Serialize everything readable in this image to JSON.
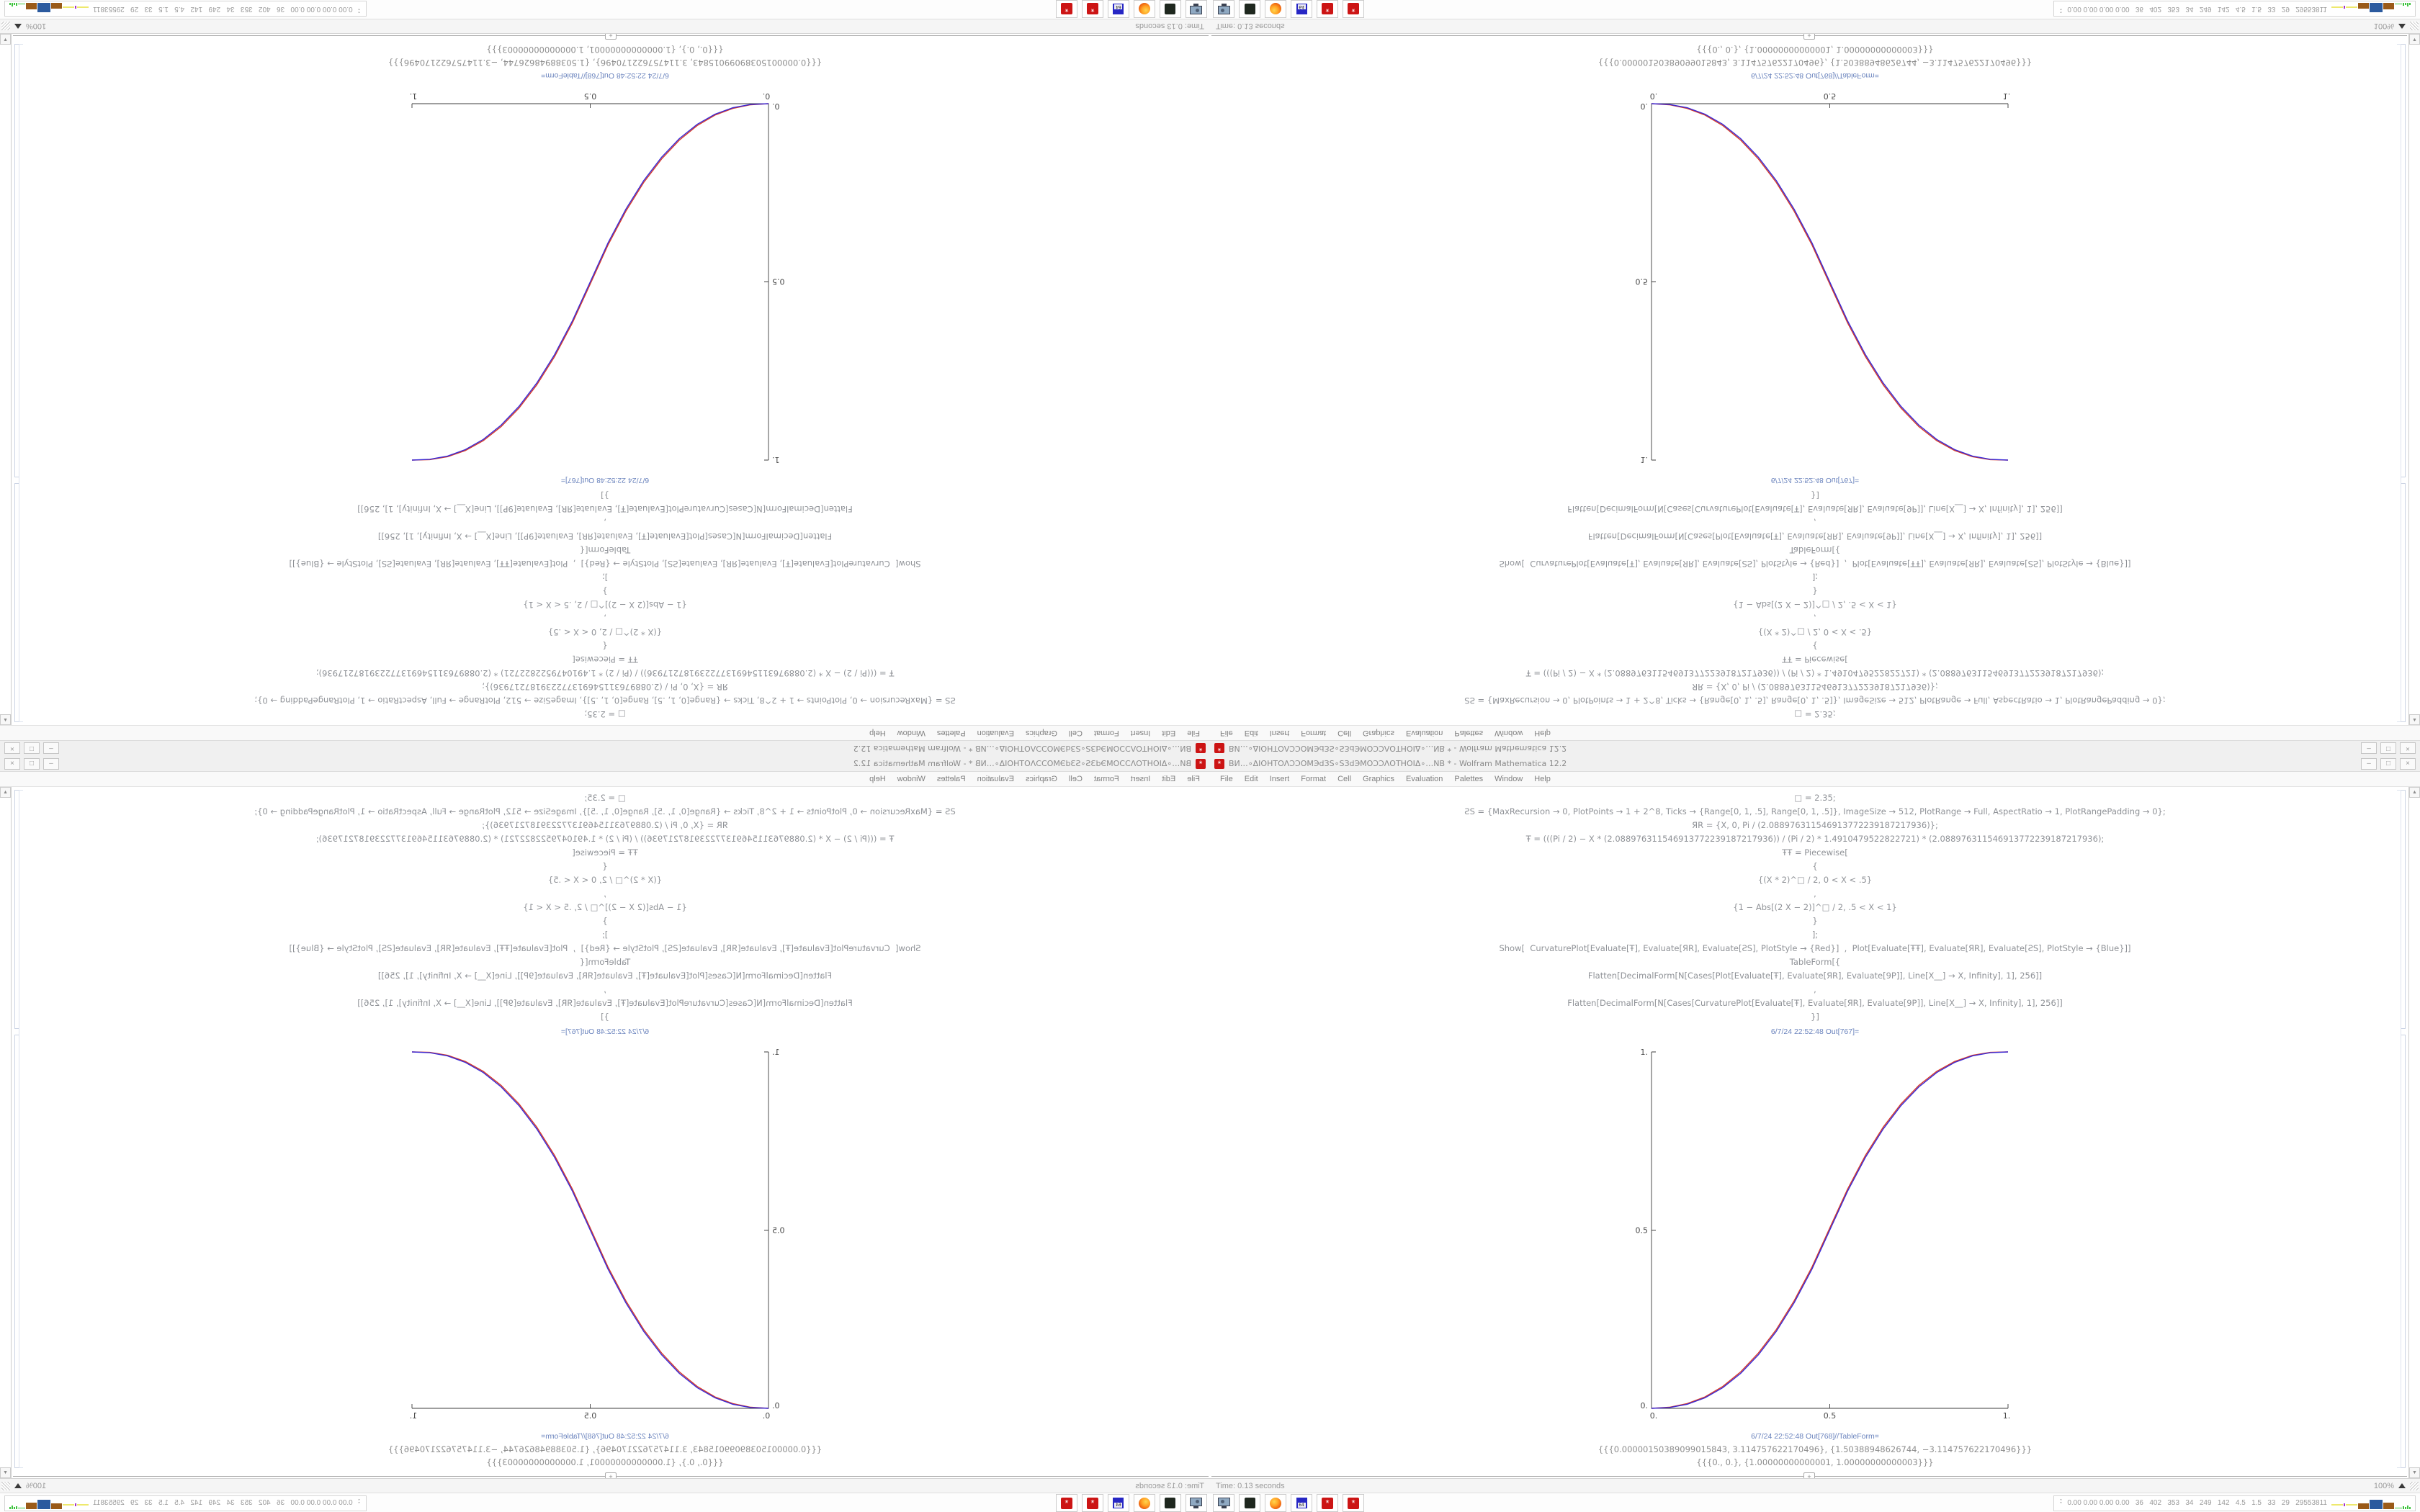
{
  "window": {
    "title": "ВИ…∘ΔIOHTOΛƆƆOMЭdЗS∘SЗdЭMOƆƆΛOTHOIΔ∘…NB * - Wolfram Mathematica 12.2",
    "menu": [
      "File",
      "Edit",
      "Insert",
      "Format",
      "Cell",
      "Graphics",
      "Evaluation",
      "Palettes",
      "Window",
      "Help"
    ],
    "minimize_glyph": "–",
    "maximize_glyph": "□",
    "close_glyph": "×",
    "status_left": "Time: 0.13 seconds",
    "zoom_level": "100%",
    "scroll_up_glyph": "▲",
    "scroll_down_glyph": "▼"
  },
  "notebook": {
    "input_lines": [
      "□ = 2.35;",
      "ƧS = {MaxRecursion → 0, PlotPoints → 1 + 2^8, Ticks → {Range[0, 1, .5], Range[0, 1, .5]}, ImageSize → 512, PlotRange → Full, AspectRatio → 1, PlotRangePadding → 0};",
      "ЯR = {X, 0, Pi / (2.088976311546913772239187217936)};",
      "Ŧ = (((Pi / 2) − X * (2.088976311546913772239187217936)) / (Pi / 2) * 1.4910479522822721) * (2.088976311546913772239187217936);",
      "ŦŦ = Piecewise[",
      "{",
      "{(X * 2)^□ / 2, 0 < X < .5}",
      ",",
      "{1 − Abs[(2 X − 2)]^□ / 2, .5 < X < 1}",
      "}",
      "];",
      "Show[  CurvaturePlot[Evaluate[Ŧ], Evaluate[ЯR], Evaluate[ƧS], PlotStyle → {Red}]  ,  Plot[Evaluate[ŦŦ], Evaluate[ЯR], Evaluate[ƧS], PlotStyle → {Blue}]]",
      "TableForm[{",
      "Flatten[DecimalForm[N[Cases[Plot[Evaluate[Ŧ], Evaluate[ЯR], Evaluate[9P]], Line[X__] → X, Infinity], 1], 256]]",
      ",",
      "Flatten[DecimalForm[N[Cases[CurvaturePlot[Evaluate[Ŧ], Evaluate[ЯR], Evaluate[9P]], Line[X__] → X, Infinity], 1], 256]]",
      "}]"
    ],
    "out_label_plot": "6/7/24 22:52:48 Out[767]=",
    "out_label_table": "6/7/24 22:52:48 Out[768]//TableForm=",
    "table_rows": [
      "{{{0.00000150389099015843, 3.114757622170496}, {1.50388948626744, −3.114757622170496}}}",
      "{{{0., 0.}, {1.00000000000001, 1.00000000000003}}}"
    ],
    "insert_plus": "+"
  },
  "chart_data": {
    "type": "line",
    "title": "",
    "xlabel": "",
    "ylabel": "",
    "xlim": [
      0,
      1
    ],
    "ylim": [
      0,
      1
    ],
    "grid": false,
    "axes": "left-bottom",
    "x_tick_labels": [
      "0.",
      "0.5",
      "1."
    ],
    "y_tick_labels": [
      "0.",
      "0.5",
      "1."
    ],
    "x": [
      0,
      0.05,
      0.1,
      0.15,
      0.2,
      0.25,
      0.3,
      0.35,
      0.4,
      0.45,
      0.5,
      0.55,
      0.6,
      0.65,
      0.7,
      0.75,
      0.8,
      0.85,
      0.9,
      0.95,
      1
    ],
    "series": [
      {
        "name": "CurvaturePlot (Red)",
        "color": "#d63a2a",
        "values": [
          0,
          0.0031,
          0.0133,
          0.0322,
          0.0615,
          0.1022,
          0.1554,
          0.2213,
          0.3017,
          0.3964,
          0.506,
          0.6154,
          0.7097,
          0.7893,
          0.8544,
          0.9062,
          0.9455,
          0.9732,
          0.9905,
          0.9987,
          1
        ]
      },
      {
        "name": "Plot (Blue)",
        "color": "#3a2ad6",
        "values": [
          0,
          0.0022,
          0.0114,
          0.0295,
          0.058,
          0.098,
          0.1505,
          0.216,
          0.296,
          0.3905,
          0.5,
          0.6095,
          0.704,
          0.784,
          0.8495,
          0.902,
          0.942,
          0.9705,
          0.9886,
          0.9978,
          1
        ]
      }
    ]
  },
  "taskbar": {
    "icons": [
      "system-monitor",
      "disk-utility",
      "firefox",
      "floppy-64",
      "mathematica",
      "mathematica"
    ],
    "floppy_label": "64",
    "chevron": "⌃",
    "stats_text": "0.00 0.00 0.00 0.00   36   402   353   34   249   142   4.5   1.5   33   29   29553811"
  }
}
